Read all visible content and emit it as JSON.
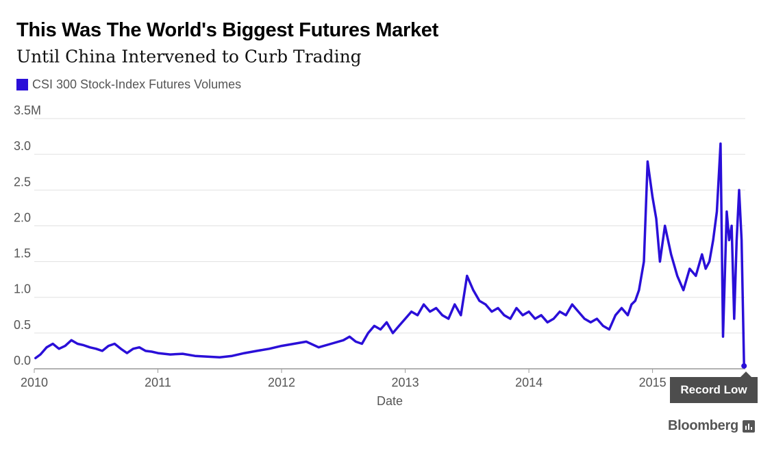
{
  "title": "This Was The World's Biggest Futures Market",
  "subtitle": "Until China Intervened to Curb Trading",
  "legend_label": "CSI 300 Stock-Index Futures Volumes",
  "annotation": "Record Low",
  "brand": "Bloomberg",
  "colors": {
    "series": "#2a0fd8",
    "grid": "#e0e0e0",
    "annotation_bg": "#4d4d4d",
    "text": "#555555"
  },
  "chart_data": {
    "type": "line",
    "title": "This Was The World's Biggest Futures Market",
    "subtitle": "Until China Intervened to Curb Trading",
    "xlabel": "Date",
    "ylabel": "",
    "ylim": [
      0,
      3.5
    ],
    "y_unit": "million contracts",
    "yticks": [
      0,
      0.5,
      1.0,
      1.5,
      2.0,
      2.5,
      3.0,
      3.5
    ],
    "ytick_labels": [
      "0.0",
      "0.5",
      "1.0",
      "1.5",
      "2.0",
      "2.5",
      "3.0",
      "3.5M"
    ],
    "xlim": [
      2010.0,
      2015.75
    ],
    "xticks": [
      2010,
      2011,
      2012,
      2013,
      2014,
      2015
    ],
    "xtick_labels": [
      "2010",
      "2011",
      "2012",
      "2013",
      "2014",
      "2015"
    ],
    "grid": true,
    "legend": "top-left",
    "series": [
      {
        "name": "CSI 300 Stock-Index Futures Volumes",
        "x": [
          2010.01,
          2010.05,
          2010.1,
          2010.15,
          2010.2,
          2010.25,
          2010.3,
          2010.35,
          2010.4,
          2010.45,
          2010.5,
          2010.55,
          2010.6,
          2010.65,
          2010.7,
          2010.75,
          2010.8,
          2010.85,
          2010.9,
          2010.95,
          2011.0,
          2011.1,
          2011.2,
          2011.3,
          2011.4,
          2011.5,
          2011.6,
          2011.7,
          2011.8,
          2011.9,
          2012.0,
          2012.1,
          2012.2,
          2012.3,
          2012.4,
          2012.5,
          2012.55,
          2012.6,
          2012.65,
          2012.7,
          2012.75,
          2012.8,
          2012.85,
          2012.9,
          2012.95,
          2013.0,
          2013.05,
          2013.1,
          2013.15,
          2013.2,
          2013.25,
          2013.3,
          2013.35,
          2013.4,
          2013.45,
          2013.5,
          2013.55,
          2013.6,
          2013.65,
          2013.7,
          2013.75,
          2013.8,
          2013.85,
          2013.9,
          2013.95,
          2014.0,
          2014.05,
          2014.1,
          2014.15,
          2014.2,
          2014.25,
          2014.3,
          2014.35,
          2014.4,
          2014.45,
          2014.5,
          2014.55,
          2014.6,
          2014.65,
          2014.7,
          2014.75,
          2014.8,
          2014.83,
          2014.86,
          2014.89,
          2014.91,
          2014.93,
          2014.96,
          2015.0,
          2015.03,
          2015.06,
          2015.1,
          2015.15,
          2015.2,
          2015.25,
          2015.3,
          2015.35,
          2015.4,
          2015.43,
          2015.46,
          2015.49,
          2015.52,
          2015.55,
          2015.57,
          2015.6,
          2015.62,
          2015.64,
          2015.66,
          2015.68,
          2015.7,
          2015.72,
          2015.74
        ],
        "values": [
          0.15,
          0.2,
          0.3,
          0.35,
          0.28,
          0.32,
          0.4,
          0.35,
          0.33,
          0.3,
          0.28,
          0.25,
          0.32,
          0.35,
          0.28,
          0.22,
          0.28,
          0.3,
          0.25,
          0.24,
          0.22,
          0.2,
          0.21,
          0.18,
          0.17,
          0.16,
          0.18,
          0.22,
          0.25,
          0.28,
          0.32,
          0.35,
          0.38,
          0.3,
          0.35,
          0.4,
          0.45,
          0.38,
          0.35,
          0.5,
          0.6,
          0.55,
          0.65,
          0.5,
          0.6,
          0.7,
          0.8,
          0.75,
          0.9,
          0.8,
          0.85,
          0.75,
          0.7,
          0.9,
          0.75,
          1.3,
          1.1,
          0.95,
          0.9,
          0.8,
          0.85,
          0.75,
          0.7,
          0.85,
          0.75,
          0.8,
          0.7,
          0.75,
          0.65,
          0.7,
          0.8,
          0.75,
          0.9,
          0.8,
          0.7,
          0.65,
          0.7,
          0.6,
          0.55,
          0.75,
          0.85,
          0.75,
          0.9,
          0.95,
          1.1,
          1.3,
          1.5,
          2.9,
          2.4,
          2.1,
          1.5,
          2.0,
          1.6,
          1.3,
          1.1,
          1.4,
          1.3,
          1.6,
          1.4,
          1.5,
          1.8,
          2.2,
          3.15,
          0.45,
          2.2,
          1.8,
          2.0,
          0.7,
          1.8,
          2.5,
          1.8,
          0.04
        ]
      }
    ]
  }
}
